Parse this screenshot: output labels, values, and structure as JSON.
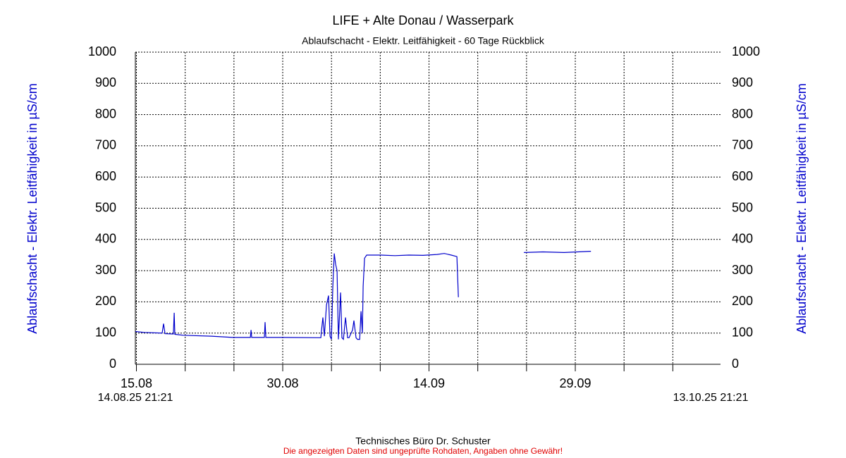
{
  "chart_data": {
    "type": "line",
    "title": "LIFE + Alte Donau / Wasserpark",
    "subtitle": "Ablaufschacht - Elektr. Leitfähigkeit - 60 Tage Rückblick",
    "y_label": "Ablaufschacht - Elektr. Leitfähigkeit in µS/cm",
    "x_start_label": "14.08.25 21:21",
    "x_end_label": "13.10.25 21:21",
    "footer": "Technisches Büro Dr. Schuster",
    "disclaimer": "Die angezeigten Daten sind ungeprüfte Rohdaten, Angaben ohne Gewähr!",
    "xlim": [
      0,
      60
    ],
    "xticks": [
      {
        "value": 0.11,
        "label": "15.08"
      },
      {
        "value": 15.11,
        "label": "30.08"
      },
      {
        "value": 30.11,
        "label": "14.09"
      },
      {
        "value": 45.11,
        "label": "29.09"
      }
    ],
    "xgrid": [
      0.11,
      5.11,
      10.11,
      15.11,
      20.11,
      25.11,
      30.11,
      35.11,
      40.11,
      45.11,
      50.11,
      55.11
    ],
    "ylim": [
      0,
      1000
    ],
    "yticks": [
      0,
      100,
      200,
      300,
      400,
      500,
      600,
      700,
      800,
      900,
      1000
    ],
    "grid": true,
    "series": [
      {
        "color": "#0000cc",
        "x": [
          0,
          0.94,
          2.75,
          2.89,
          3.04,
          3.9,
          3.98,
          4.05,
          4.92,
          7.81,
          9.98,
          11.79,
          11.86,
          11.93,
          13.23,
          13.3,
          13.38,
          15.04,
          19.02,
          19.09,
          19.23,
          19.38,
          19.6,
          19.81,
          19.96,
          20.1,
          20.25,
          20.39,
          20.54,
          20.68,
          20.82,
          21.04,
          21.18,
          21.33,
          21.55,
          21.76,
          21.91,
          22.27,
          22.41,
          22.63,
          22.78,
          23.0,
          23.14,
          23.28,
          23.36,
          23.5,
          23.72,
          25.16,
          26.61,
          28.05,
          29.5,
          30.95,
          31.67,
          32.39,
          32.97,
          33.12,
          33.5,
          39.84,
          41.79,
          43.96,
          46.71
        ],
        "values": [
          105,
          102,
          100,
          130,
          98,
          97,
          165,
          96,
          93,
          90,
          86,
          86,
          110,
          86,
          86,
          135,
          86,
          86,
          85,
          110,
          150,
          90,
          190,
          220,
          90,
          80,
          250,
          355,
          320,
          300,
          80,
          230,
          85,
          80,
          150,
          85,
          85,
          110,
          140,
          85,
          80,
          80,
          170,
          100,
          250,
          340,
          350,
          350,
          348,
          350,
          349,
          352,
          355,
          350,
          345,
          215,
          null,
          358,
          360,
          358,
          362
        ]
      }
    ]
  }
}
